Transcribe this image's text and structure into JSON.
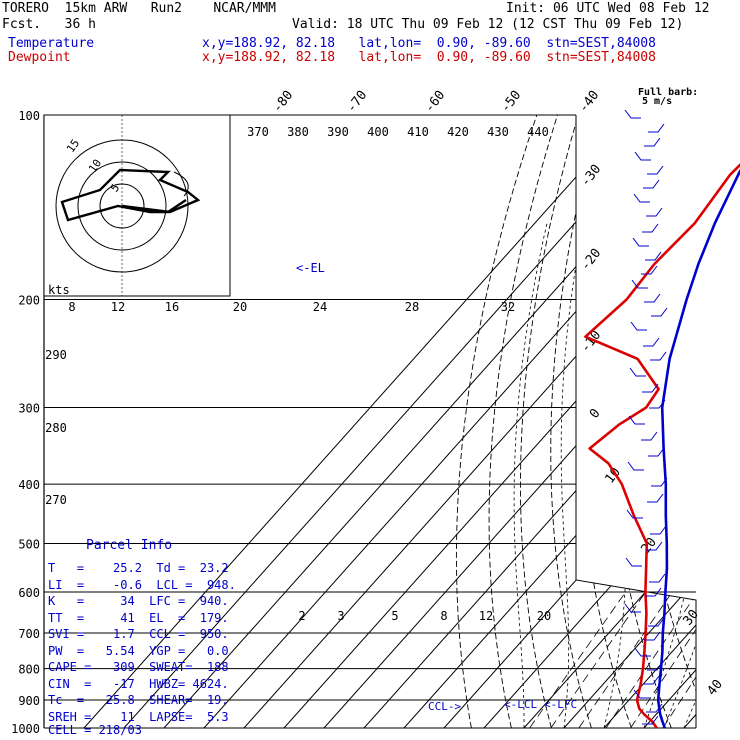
{
  "header": {
    "model_line": "TORERO  15km ARW   Run2    NCAR/MMM",
    "init": "Init: 06 UTC Wed 08 Feb 12",
    "fcst": "Fcst.   36 h",
    "valid": "Valid: 18 UTC Thu 09 Feb 12 (12 CST Thu 09 Feb 12)",
    "temp_label": "Temperature",
    "dew_label": "Dewpoint",
    "temp_info": "x,y=188.92, 82.18   lat,lon=  0.90, -89.60  stn=SEST,84008",
    "dew_info": "x,y=188.92, 82.18   lat,lon=  0.90, -89.60  stn=SEST,84008"
  },
  "colors": {
    "temperature": "#0000cc",
    "dewpoint": "#dd0000",
    "grid": "#000000"
  },
  "barb_legend": [
    "Full barb:",
    "5 m/s"
  ],
  "parcel_info": {
    "title": "Parcel Info",
    "rows": [
      "T   =    25.2  Td =  23.2",
      "LI  =    -0.6  LCL =  948.",
      "K   =     34  LFC =  940.",
      "TT  =     41  EL  =  179.",
      "SVI =    1.7  CCL =  950.",
      "PW  =   5.54  YGP =   0.0",
      "CAPE =   309  SWEAT=  188",
      "CIN  =   -17  HWBZ= 4624.",
      "Tc  =   25.8  SHEAR=  19.",
      "SREH =    11  LAPSE=  5.3",
      "CELL = 218/03"
    ]
  },
  "annotations": {
    "el": "<-EL",
    "ccl": "CCL->",
    "lcl": "<-LCL",
    "lfc": "<-LFC"
  },
  "hodograph": {
    "unit": "kts",
    "ring_labels": [
      "5",
      "10",
      "15"
    ],
    "speed_ticks": [
      "8",
      "12",
      "16",
      "20",
      "24",
      "28",
      "32"
    ]
  },
  "chart_data": {
    "type": "skew-t",
    "pressure_ticks": [
      100,
      200,
      300,
      400,
      500,
      600,
      700,
      800,
      900,
      1000
    ],
    "isotherm_labels": [
      "-80",
      "-70",
      "-60",
      "-50",
      "-40",
      "-30",
      "-20",
      "-10",
      "0",
      "10",
      "20",
      "30",
      "40"
    ],
    "isotherm_values": [
      -80,
      -70,
      -60,
      -50,
      -40,
      -30,
      -20,
      -10,
      0,
      10,
      20,
      30,
      40
    ],
    "theta_labels": [
      "370",
      "380",
      "390",
      "400",
      "410",
      "420",
      "430",
      "440"
    ],
    "theta_label_values": [
      370,
      380,
      390,
      400,
      410,
      420,
      430,
      440
    ],
    "theta_left_labels": [
      "290",
      "280",
      "270"
    ],
    "mixing_ratio_labels": [
      "2",
      "3",
      "5",
      "8",
      "12",
      "20"
    ],
    "temperature": {
      "p": [
        1000,
        975,
        950,
        930,
        900,
        850,
        800,
        750,
        700,
        650,
        600,
        550,
        500,
        450,
        400,
        350,
        300,
        250,
        200,
        175,
        150,
        125,
        110,
        100
      ],
      "t": [
        25.2,
        23.1,
        21.0,
        19.5,
        17.3,
        14.2,
        11.0,
        7.5,
        3.5,
        -0.5,
        -5.0,
        -9.8,
        -15.5,
        -22.0,
        -29.0,
        -37.5,
        -47.0,
        -56.0,
        -65.0,
        -70.0,
        -75.0,
        -80.0,
        -83.0,
        -84.0
      ]
    },
    "dewpoint": {
      "p": [
        1000,
        975,
        950,
        930,
        900,
        850,
        800,
        750,
        700,
        650,
        600,
        550,
        500,
        450,
        400,
        370,
        350,
        320,
        300,
        280,
        250,
        230,
        200,
        175,
        150,
        125,
        110,
        100
      ],
      "td": [
        23.2,
        20.5,
        17.0,
        14.5,
        12.0,
        9.5,
        6.5,
        3.0,
        -0.8,
        -5.0,
        -10.0,
        -15.0,
        -20.5,
        -30.0,
        -40.0,
        -48.0,
        -56.0,
        -54.0,
        -51.0,
        -52.0,
        -64.0,
        -82.0,
        -80.0,
        -81.0,
        -80.0,
        -82.0,
        -81.0,
        -80.0
      ]
    }
  }
}
